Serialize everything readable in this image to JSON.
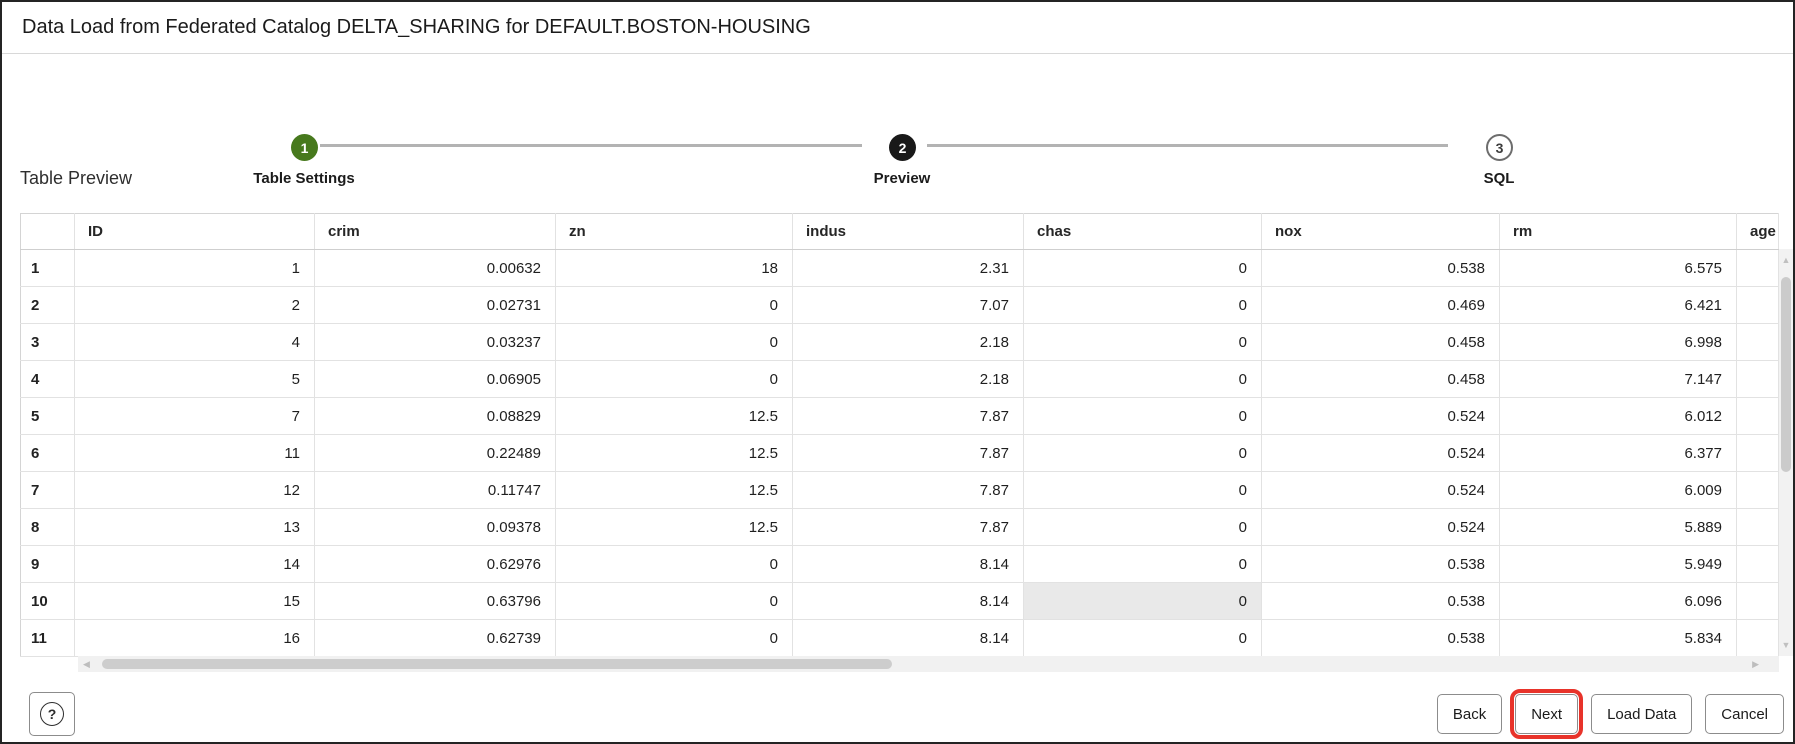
{
  "dialog": {
    "title": "Data Load from Federated Catalog DELTA_SHARING for DEFAULT.BOSTON-HOUSING"
  },
  "stepper": {
    "steps": [
      {
        "number": "1",
        "label": "Table Settings",
        "state": "complete"
      },
      {
        "number": "2",
        "label": "Preview",
        "state": "active"
      },
      {
        "number": "3",
        "label": "SQL",
        "state": "upcoming"
      }
    ]
  },
  "preview": {
    "heading": "Table Preview"
  },
  "table": {
    "columns": [
      "",
      "ID",
      "crim",
      "zn",
      "indus",
      "chas",
      "nox",
      "rm",
      "age"
    ],
    "rows": [
      {
        "n": "1",
        "cells": [
          "1",
          "0.00632",
          "18",
          "2.31",
          "0",
          "0.538",
          "6.575",
          ""
        ]
      },
      {
        "n": "2",
        "cells": [
          "2",
          "0.02731",
          "0",
          "7.07",
          "0",
          "0.469",
          "6.421",
          ""
        ]
      },
      {
        "n": "3",
        "cells": [
          "4",
          "0.03237",
          "0",
          "2.18",
          "0",
          "0.458",
          "6.998",
          ""
        ]
      },
      {
        "n": "4",
        "cells": [
          "5",
          "0.06905",
          "0",
          "2.18",
          "0",
          "0.458",
          "7.147",
          ""
        ]
      },
      {
        "n": "5",
        "cells": [
          "7",
          "0.08829",
          "12.5",
          "7.87",
          "0",
          "0.524",
          "6.012",
          ""
        ]
      },
      {
        "n": "6",
        "cells": [
          "11",
          "0.22489",
          "12.5",
          "7.87",
          "0",
          "0.524",
          "6.377",
          ""
        ]
      },
      {
        "n": "7",
        "cells": [
          "12",
          "0.11747",
          "12.5",
          "7.87",
          "0",
          "0.524",
          "6.009",
          ""
        ]
      },
      {
        "n": "8",
        "cells": [
          "13",
          "0.09378",
          "12.5",
          "7.87",
          "0",
          "0.524",
          "5.889",
          ""
        ]
      },
      {
        "n": "9",
        "cells": [
          "14",
          "0.62976",
          "0",
          "8.14",
          "0",
          "0.538",
          "5.949",
          ""
        ]
      },
      {
        "n": "10",
        "cells": [
          "15",
          "0.63796",
          "0",
          "8.14",
          "0",
          "0.538",
          "6.096",
          ""
        ]
      },
      {
        "n": "11",
        "cells": [
          "16",
          "0.62739",
          "0",
          "8.14",
          "0",
          "0.538",
          "5.834",
          ""
        ]
      }
    ],
    "highlighted_cell": {
      "row_label": "10",
      "column": "chas"
    }
  },
  "icons": {
    "help": "?",
    "scroll_up": "▲",
    "scroll_down": "▼",
    "scroll_left": "◀",
    "scroll_right": "▶"
  },
  "footer": {
    "buttons": {
      "back": "Back",
      "next": "Next",
      "load_data": "Load Data",
      "cancel": "Cancel"
    }
  },
  "colors": {
    "step_complete": "#47791d",
    "step_active": "#191919",
    "annotation_red": "#e8332a",
    "cell_highlight": "#e9e9e9"
  }
}
